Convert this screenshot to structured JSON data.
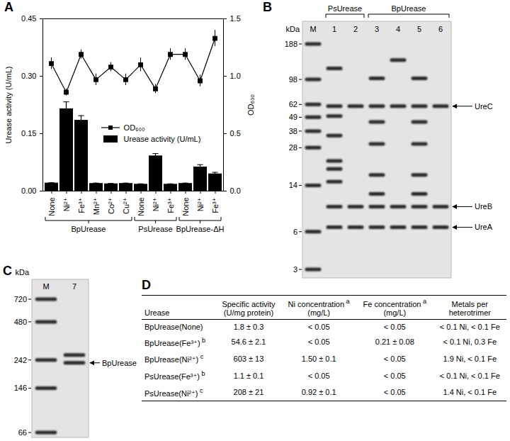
{
  "chart_data": {
    "type": "bar",
    "panel": "A",
    "categories": [
      "None",
      "Ni²⁺",
      "Fe³⁺",
      "Mn²⁺",
      "Co²⁺",
      "Cu²⁺",
      "None",
      "Ni²⁺",
      "Fe³⁺",
      "None",
      "Ni²⁺",
      "Fe³⁺"
    ],
    "groups": [
      {
        "label": "BpUrease",
        "count": 6
      },
      {
        "label": "PsUrease",
        "count": 3
      },
      {
        "label": "BpUrease-ΔH",
        "count": 3
      }
    ],
    "ylabel": "Urease activity (U/mL)",
    "y2label": "OD₆₀₀",
    "ylim": [
      0,
      0.45
    ],
    "yticks": [
      {
        "value": 0,
        "label": "0.00"
      },
      {
        "value": 0.15,
        "label": "0.15"
      },
      {
        "value": 0.3,
        "label": "0.30"
      },
      {
        "value": 0.45,
        "label": "0.45"
      }
    ],
    "y2lim": [
      0,
      1.5
    ],
    "y2ticks": [
      {
        "value": 0,
        "label": "0.0"
      },
      {
        "value": 0.5,
        "label": "0.5"
      },
      {
        "value": 1,
        "label": "1.0"
      },
      {
        "value": 1.5,
        "label": "1.5"
      }
    ],
    "legend": "center",
    "series": [
      {
        "name": "OD₆₀₀",
        "type": "line",
        "axis": "y2",
        "color": "#000000",
        "marker": "square",
        "values": [
          1.11,
          0.86,
          1.19,
          0.97,
          1.08,
          0.97,
          1.1,
          0.89,
          1.19,
          1.19,
          0.96,
          1.33
        ],
        "errors": [
          0.05,
          0.03,
          0.04,
          0.05,
          0.04,
          0.05,
          0.06,
          0.04,
          0.05,
          0.05,
          0.05,
          0.07
        ]
      },
      {
        "name": "Urease activity (U/mL)",
        "type": "bar",
        "color": "#000000",
        "values": [
          0.021,
          0.215,
          0.185,
          0.02,
          0.019,
          0.02,
          0.018,
          0.092,
          0.018,
          0.02,
          0.063,
          0.045
        ],
        "errors": [
          0.001,
          0.018,
          0.012,
          0.001,
          0.001,
          0.001,
          0.001,
          0.006,
          0.001,
          0.001,
          0.006,
          0.004
        ]
      }
    ]
  },
  "gel_B": {
    "panel": "B",
    "unit": "kDa",
    "markers": [
      188,
      98,
      62,
      49,
      38,
      28,
      14,
      6,
      3
    ],
    "lanes": [
      {
        "label": "M"
      },
      {
        "label": "1",
        "bands": [
          120,
          60,
          50,
          35,
          22,
          19,
          15,
          9.5,
          6.5
        ]
      },
      {
        "label": "2",
        "bands": [
          60,
          9.5,
          6.5
        ]
      },
      {
        "label": "3",
        "bands": [
          100,
          60,
          45,
          30,
          17,
          12,
          9.5,
          6.5
        ]
      },
      {
        "label": "4",
        "bands": [
          140,
          60,
          9.5,
          6.5
        ]
      },
      {
        "label": "5",
        "bands": [
          100,
          60,
          45,
          30,
          17,
          12,
          9.5,
          6.5
        ]
      },
      {
        "label": "6",
        "bands": [
          60,
          9.5,
          6.5
        ]
      }
    ],
    "groups": [
      {
        "label": "PsUrease",
        "lanes": [
          "1",
          "2"
        ]
      },
      {
        "label": "BpUrease",
        "lanes": [
          "3",
          "4",
          "5",
          "6"
        ]
      }
    ],
    "annotations": [
      {
        "label": "UreC",
        "kDa": 60
      },
      {
        "label": "UreB",
        "kDa": 9.5
      },
      {
        "label": "UreA",
        "kDa": 6.5
      }
    ]
  },
  "gel_C": {
    "panel": "C",
    "unit": "kDa",
    "markers": [
      720,
      480,
      242,
      146,
      66
    ],
    "lanes": [
      {
        "label": "M"
      },
      {
        "label": "7",
        "bands": [
          265,
          230
        ]
      }
    ],
    "annotations": [
      {
        "label": "BpUrease",
        "kDa": 230
      }
    ]
  },
  "table_D": {
    "panel": "D",
    "header": [
      {
        "text": "Urease"
      },
      {
        "text": "Specific activity",
        "line2": "(U/mg protein)"
      },
      {
        "text": "Ni concentration",
        "sup": "a",
        "line2": "(mg/L)"
      },
      {
        "text": "Fe concentration",
        "sup": "a",
        "line2": "(mg/L)"
      },
      {
        "text": "Metals per",
        "line2": "heterotrimer"
      }
    ],
    "rows": [
      [
        {
          "text": "BpUrease(None)"
        },
        "1.8 ± 0.3",
        "< 0.05",
        "< 0.05",
        "< 0.1 Ni, < 0.1 Fe"
      ],
      [
        {
          "text": "BpUrease(Fe³⁺)",
          "sup": "b"
        },
        "54.6 ± 2.1",
        "< 0.05",
        "0.21 ± 0.08",
        "< 0.1 Ni, 0.3 Fe"
      ],
      [
        {
          "text": "BpUrease(Ni²⁺)",
          "sup": "c"
        },
        "603 ± 13",
        "1.50 ± 0.1",
        "< 0.05",
        "1.9 Ni, < 0.1 Fe"
      ],
      [
        {
          "text": "PsUrease(Fe³⁺)",
          "sup": "b"
        },
        "1.1 ± 0.1",
        "< 0.05",
        "< 0.05",
        "< 0.1 Ni, < 0.1 Fe"
      ],
      [
        {
          "text": "PsUrease(Ni²⁺)",
          "sup": "c"
        },
        "208 ± 21",
        "0.92 ± 0.1",
        "< 0.05",
        "1.4 Ni, < 0.1 Fe"
      ]
    ]
  }
}
